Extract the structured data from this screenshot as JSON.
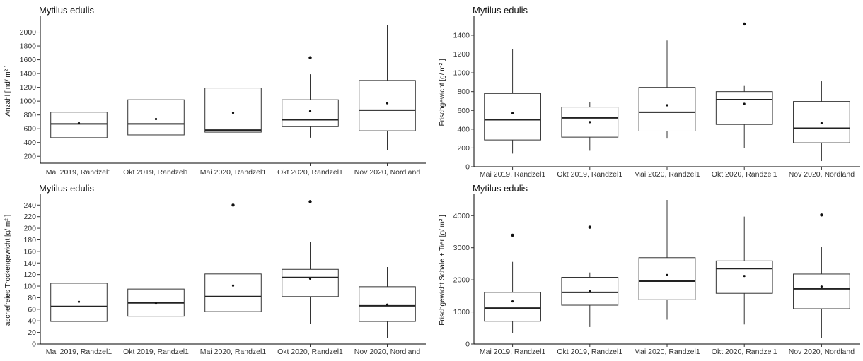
{
  "chart_data": [
    {
      "type": "boxplot",
      "title": "Mytilus edulis",
      "ylabel": "Anzahl [ind/ m² ]",
      "xlabel": "",
      "categories": [
        "Mai 2019, Randzel1",
        "Okt 2019, Randzel1",
        "Mai 2020, Randzel1",
        "Okt 2020, Randzel1",
        "Nov 2020, Nordland"
      ],
      "ylim": [
        100,
        2200
      ],
      "yticks": [
        200,
        400,
        600,
        800,
        1000,
        1200,
        1400,
        1600,
        1800,
        2000
      ],
      "boxes": [
        {
          "whisker_low": 230,
          "q1": 470,
          "median": 670,
          "q3": 840,
          "whisker_high": 1100,
          "mean": 680,
          "outliers": []
        },
        {
          "whisker_low": 170,
          "q1": 510,
          "median": 670,
          "q3": 1020,
          "whisker_high": 1280,
          "mean": 740,
          "outliers": []
        },
        {
          "whisker_low": 300,
          "q1": 550,
          "median": 580,
          "q3": 1190,
          "whisker_high": 1620,
          "mean": 830,
          "outliers": []
        },
        {
          "whisker_low": 470,
          "q1": 630,
          "median": 730,
          "q3": 1020,
          "whisker_high": 1390,
          "mean": 855,
          "outliers": [
            1630
          ]
        },
        {
          "whisker_low": 290,
          "q1": 570,
          "median": 870,
          "q3": 1300,
          "whisker_high": 2100,
          "mean": 970,
          "outliers": []
        }
      ],
      "grid": false
    },
    {
      "type": "boxplot",
      "title": "Mytilus edulis",
      "ylabel": "Frischgewicht [g/ m² ]",
      "xlabel": "",
      "categories": [
        "Mai 2019, Randzel1",
        "Okt 2019, Randzel1",
        "Mai 2020, Randzel1",
        "Okt 2020, Randzel1",
        "Nov 2020, Nordland"
      ],
      "ylim": [
        0,
        1580
      ],
      "yticks": [
        0,
        200,
        400,
        600,
        800,
        1000,
        1200,
        1400
      ],
      "boxes": [
        {
          "whisker_low": 140,
          "q1": 285,
          "median": 500,
          "q3": 780,
          "whisker_high": 1255,
          "mean": 570,
          "outliers": []
        },
        {
          "whisker_low": 170,
          "q1": 315,
          "median": 520,
          "q3": 635,
          "whisker_high": 690,
          "mean": 475,
          "outliers": []
        },
        {
          "whisker_low": 300,
          "q1": 380,
          "median": 580,
          "q3": 845,
          "whisker_high": 1345,
          "mean": 655,
          "outliers": []
        },
        {
          "whisker_low": 200,
          "q1": 450,
          "median": 715,
          "q3": 800,
          "whisker_high": 860,
          "mean": 670,
          "outliers": [
            1520
          ]
        },
        {
          "whisker_low": 60,
          "q1": 255,
          "median": 410,
          "q3": 695,
          "whisker_high": 910,
          "mean": 465,
          "outliers": []
        }
      ],
      "grid": false
    },
    {
      "type": "boxplot",
      "title": "Mytilus edulis",
      "ylabel": "aschefreies Trockengewicht [g/ m² ]",
      "xlabel": "",
      "categories": [
        "Mai 2019, Randzel1",
        "Okt 2019, Randzel1",
        "Mai 2020, Randzel1",
        "Okt 2020, Randzel1",
        "Nov 2020, Nordland"
      ],
      "ylim": [
        0,
        255
      ],
      "yticks": [
        0,
        20,
        40,
        60,
        80,
        100,
        120,
        140,
        160,
        180,
        200,
        220,
        240
      ],
      "boxes": [
        {
          "whisker_low": 17,
          "q1": 39,
          "median": 65,
          "q3": 105,
          "whisker_high": 151,
          "mean": 73,
          "outliers": []
        },
        {
          "whisker_low": 24,
          "q1": 48,
          "median": 71,
          "q3": 95,
          "whisker_high": 117,
          "mean": 70,
          "outliers": []
        },
        {
          "whisker_low": 51,
          "q1": 56,
          "median": 82,
          "q3": 121,
          "whisker_high": 157,
          "mean": 101,
          "outliers": [
            240
          ]
        },
        {
          "whisker_low": 35,
          "q1": 82,
          "median": 115,
          "q3": 129,
          "whisker_high": 176,
          "mean": 113,
          "outliers": [
            246
          ]
        },
        {
          "whisker_low": 10,
          "q1": 39,
          "median": 66,
          "q3": 99,
          "whisker_high": 133,
          "mean": 68,
          "outliers": []
        }
      ],
      "grid": false
    },
    {
      "type": "boxplot",
      "title": "Mytilus edulis",
      "ylabel": "Frischgewicht Schale + Tier [g/ m² ]",
      "xlabel": "",
      "categories": [
        "Mai 2019, Randzel1",
        "Okt 2019, Randzel1",
        "Mai 2020, Randzel1",
        "Okt 2020, Randzel1",
        "Nov 2020, Nordland"
      ],
      "ylim": [
        0,
        4600
      ],
      "yticks": [
        0,
        1000,
        2000,
        3000,
        4000
      ],
      "boxes": [
        {
          "whisker_low": 330,
          "q1": 710,
          "median": 1120,
          "q3": 1610,
          "whisker_high": 2560,
          "mean": 1330,
          "outliers": [
            3390
          ]
        },
        {
          "whisker_low": 530,
          "q1": 1210,
          "median": 1610,
          "q3": 2080,
          "whisker_high": 2230,
          "mean": 1640,
          "outliers": [
            3640
          ]
        },
        {
          "whisker_low": 760,
          "q1": 1380,
          "median": 1960,
          "q3": 2690,
          "whisker_high": 4490,
          "mean": 2150,
          "outliers": []
        },
        {
          "whisker_low": 610,
          "q1": 1580,
          "median": 2350,
          "q3": 2590,
          "whisker_high": 3970,
          "mean": 2120,
          "outliers": []
        },
        {
          "whisker_low": 180,
          "q1": 1100,
          "median": 1720,
          "q3": 2180,
          "whisker_high": 3030,
          "mean": 1790,
          "outliers": [
            4020
          ]
        }
      ],
      "grid": false
    }
  ]
}
